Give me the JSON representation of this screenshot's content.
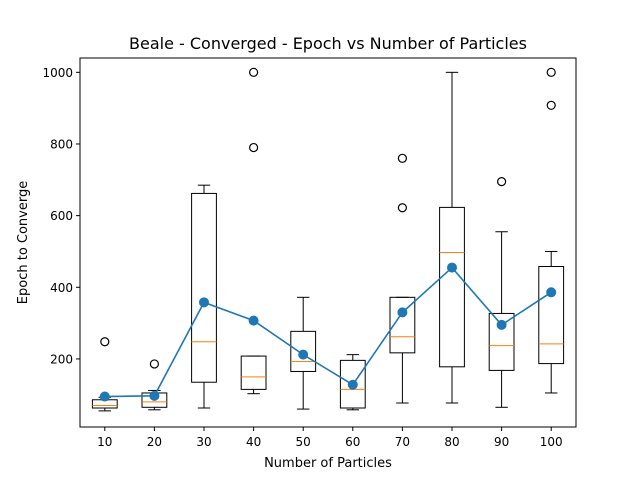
{
  "chart_data": {
    "type": "box",
    "title": "Beale - Converged - Epoch vs Number of Particles",
    "xlabel": "Number of Particles",
    "ylabel": "Epoch to Converge",
    "categories": [
      "10",
      "20",
      "30",
      "40",
      "50",
      "60",
      "70",
      "80",
      "90",
      "100"
    ],
    "xlim": [
      0.5,
      10.5
    ],
    "ylim": [
      10,
      1040
    ],
    "yticks": [
      200,
      400,
      600,
      800,
      1000
    ],
    "box_series": [
      {
        "category": "10",
        "whisker_low": 55,
        "q1": 63,
        "median": 70,
        "q3": 86,
        "whisker_high": 93,
        "outliers": [
          248
        ]
      },
      {
        "category": "20",
        "whisker_low": 58,
        "q1": 65,
        "median": 80,
        "q3": 105,
        "whisker_high": 112,
        "outliers": [
          186
        ]
      },
      {
        "category": "30",
        "whisker_low": 63,
        "q1": 135,
        "median": 248,
        "q3": 662,
        "whisker_high": 685,
        "outliers": []
      },
      {
        "category": "40",
        "whisker_low": 103,
        "q1": 115,
        "median": 150,
        "q3": 208,
        "whisker_high": 208,
        "outliers": [
          790,
          1000
        ]
      },
      {
        "category": "50",
        "whisker_low": 60,
        "q1": 165,
        "median": 193,
        "q3": 277,
        "whisker_high": 372,
        "outliers": []
      },
      {
        "category": "60",
        "whisker_low": 58,
        "q1": 63,
        "median": 115,
        "q3": 196,
        "whisker_high": 212,
        "outliers": []
      },
      {
        "category": "70",
        "whisker_low": 77,
        "q1": 217,
        "median": 262,
        "q3": 372,
        "whisker_high": 372,
        "outliers": [
          622,
          760
        ]
      },
      {
        "category": "80",
        "whisker_low": 77,
        "q1": 178,
        "median": 497,
        "q3": 623,
        "whisker_high": 1000,
        "outliers": []
      },
      {
        "category": "90",
        "whisker_low": 65,
        "q1": 168,
        "median": 237,
        "q3": 327,
        "whisker_high": 555,
        "outliers": [
          695
        ]
      },
      {
        "category": "100",
        "whisker_low": 105,
        "q1": 187,
        "median": 242,
        "q3": 458,
        "whisker_high": 500,
        "outliers": [
          908,
          1000
        ]
      }
    ],
    "series": [
      {
        "name": "",
        "type": "line",
        "values": [
          95,
          97,
          358,
          307,
          212,
          128,
          330,
          455,
          295,
          386
        ]
      }
    ],
    "colors": {
      "box": "#000000",
      "median": "#ff7f0e",
      "line": "#1f77b4",
      "outlier": "#000000"
    },
    "grid": false
  }
}
